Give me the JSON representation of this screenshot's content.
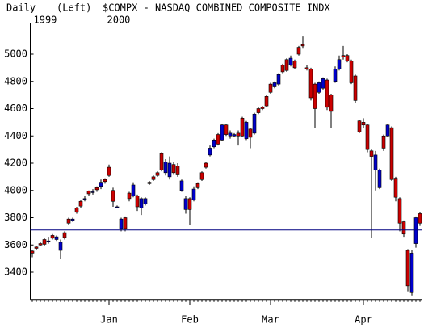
{
  "chart_data": {
    "type": "candlestick",
    "period": "Daily",
    "axis_side": "(Left)",
    "title": "$COMPX - NASDAQ COMBINED COMPOSITE INDX",
    "year_labels": [
      {
        "value": 0,
        "label": "1999"
      },
      {
        "value": 19,
        "label": "2000"
      }
    ],
    "open": [
      3540,
      3575,
      3600,
      3605,
      3630,
      3650,
      3660,
      3620,
      3655,
      3760,
      3790,
      3840,
      3885,
      3940,
      3975,
      3990,
      4005,
      4060,
      4065,
      4110,
      3920,
      3880,
      3790,
      3720,
      3940,
      4040,
      3880,
      3940,
      3940,
      4050,
      4080,
      4110,
      4150,
      4210,
      4200,
      4130,
      4120,
      4070,
      3940,
      3860,
      4010,
      4020,
      4080,
      4170,
      4310,
      4370,
      4340,
      4480,
      4410,
      4420,
      4410,
      4400,
      4400,
      4500,
      4390,
      4560,
      4570,
      4600,
      4620,
      4720,
      4790,
      4850,
      4870,
      4880,
      4970,
      4900,
      5000,
      5060,
      4890,
      4680,
      4600,
      4790,
      4820,
      4610,
      4580,
      4890,
      4960,
      4980,
      4950,
      4790,
      4660,
      4430,
      4480,
      4300,
      4250,
      4260,
      4150,
      4310,
      4480,
      4080,
      3950,
      3760,
      3680,
      3300,
      3540,
      3800,
      3760
    ],
    "high": [
      3560,
      3590,
      3620,
      3650,
      3660,
      3680,
      3670,
      3640,
      3700,
      3800,
      3800,
      3880,
      3930,
      3960,
      4000,
      4010,
      4030,
      4080,
      4090,
      4190,
      4020,
      3890,
      3800,
      3810,
      3990,
      4060,
      3970,
      3950,
      3950,
      4070,
      4110,
      4140,
      4280,
      4230,
      4250,
      4210,
      4200,
      4080,
      3960,
      3950,
      4030,
      4060,
      4140,
      4210,
      4330,
      4380,
      4420,
      4490,
      4490,
      4440,
      4420,
      4440,
      4540,
      4510,
      4460,
      4570,
      4610,
      4620,
      4700,
      4790,
      4800,
      4860,
      4930,
      4970,
      4990,
      4960,
      5060,
      5130,
      4920,
      4900,
      4790,
      4800,
      4830,
      4820,
      4710,
      4910,
      4990,
      5060,
      5000,
      4960,
      4850,
      4520,
      4530,
      4490,
      4300,
      4290,
      4160,
      4410,
      4490,
      4470,
      4100,
      3950,
      3780,
      3570,
      3560,
      3810,
      3840
    ],
    "low": [
      3510,
      3560,
      3590,
      3590,
      3610,
      3640,
      3630,
      3500,
      3640,
      3750,
      3770,
      3830,
      3870,
      3920,
      3960,
      3970,
      3990,
      4010,
      4050,
      4100,
      3880,
      3870,
      3700,
      3700,
      3920,
      3950,
      3850,
      3820,
      3890,
      4040,
      4070,
      4100,
      4140,
      4110,
      4080,
      4120,
      4100,
      3990,
      3830,
      3750,
      3920,
      4010,
      4070,
      4160,
      4250,
      4310,
      4330,
      4360,
      4400,
      4380,
      4390,
      4330,
      4390,
      4370,
      4310,
      4410,
      4560,
      4590,
      4610,
      4710,
      4750,
      4770,
      4860,
      4870,
      4910,
      4890,
      4990,
      5040,
      4880,
      4660,
      4460,
      4710,
      4740,
      4590,
      4460,
      4790,
      4880,
      4960,
      4940,
      4780,
      4640,
      4420,
      4460,
      4280,
      3650,
      4000,
      4010,
      4290,
      4390,
      4070,
      3920,
      3700,
      3660,
      3260,
      3230,
      3580,
      3740
    ],
    "close": [
      3555,
      3585,
      3610,
      3640,
      3625,
      3670,
      3640,
      3560,
      3690,
      3790,
      3780,
      3870,
      3920,
      3935,
      3995,
      3985,
      4020,
      4030,
      4080,
      4170,
      4000,
      3875,
      3720,
      3800,
      3980,
      3960,
      3960,
      3870,
      3900,
      4060,
      4100,
      4130,
      4270,
      4130,
      4100,
      4190,
      4180,
      4000,
      3860,
      3940,
      3930,
      4050,
      4130,
      4200,
      4260,
      4320,
      4410,
      4370,
      4480,
      4400,
      4400,
      4420,
      4530,
      4380,
      4450,
      4420,
      4600,
      4610,
      4690,
      4780,
      4760,
      4780,
      4920,
      4960,
      4920,
      4950,
      5050,
      5070,
      4900,
      4890,
      4780,
      4720,
      4750,
      4810,
      4700,
      4800,
      4890,
      4990,
      4990,
      4950,
      4840,
      4510,
      4500,
      4480,
      4290,
      4150,
      4020,
      4400,
      4400,
      4460,
      4090,
      3940,
      3770,
      3560,
      3250,
      3610,
      3830
    ],
    "up_color": "#cc0000",
    "down_color": "#0000cc",
    "ylim": [
      3200,
      5200
    ],
    "yticks": [
      3400,
      3600,
      3800,
      4000,
      4200,
      4400,
      4600,
      4800,
      5000
    ],
    "xticks": [
      {
        "value": 19,
        "label": "Jan"
      },
      {
        "value": 39,
        "label": "Feb"
      },
      {
        "value": 59,
        "label": "Mar"
      },
      {
        "value": 82,
        "label": "Apr"
      }
    ],
    "hline": {
      "value": 3710,
      "color": "#000080"
    }
  }
}
